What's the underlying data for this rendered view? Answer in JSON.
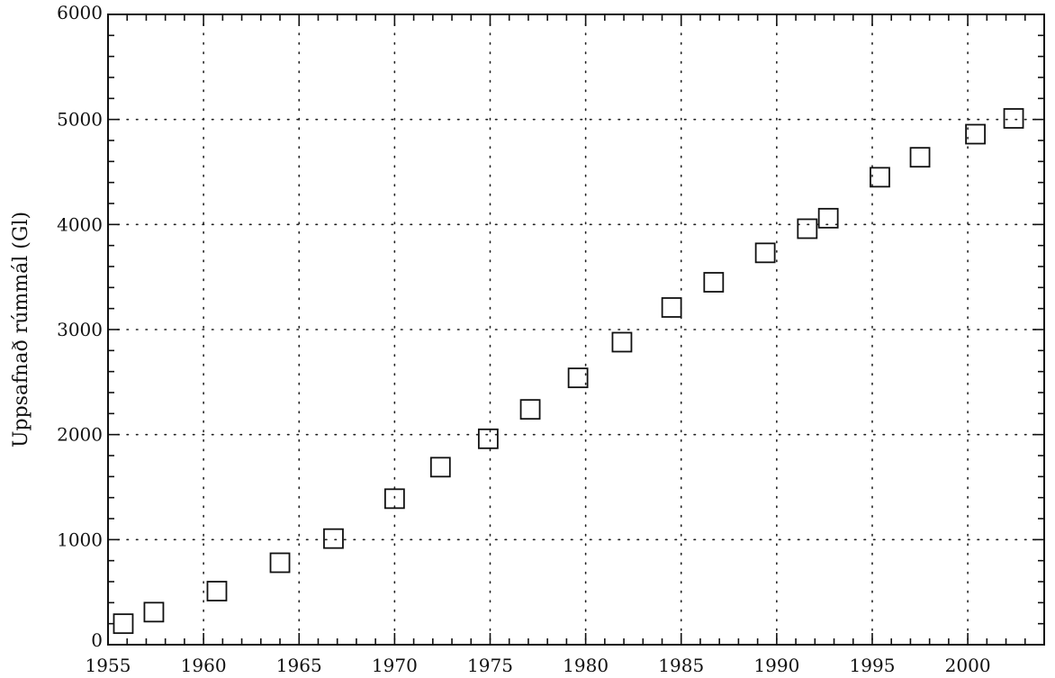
{
  "chart_data": {
    "type": "scatter",
    "title": "",
    "xlabel": "",
    "ylabel": "Uppsafnað rúmmál (Gl)",
    "xlim": [
      1955,
      2004
    ],
    "ylim": [
      0,
      6000
    ],
    "xticks": [
      1955,
      1960,
      1965,
      1970,
      1975,
      1980,
      1985,
      1990,
      1995,
      2000
    ],
    "yticks": [
      0,
      1000,
      2000,
      3000,
      4000,
      5000,
      6000
    ],
    "grid": true,
    "marker": "open-square",
    "x": [
      1955.8,
      1957.4,
      1960.7,
      1964.0,
      1966.8,
      1970.0,
      1972.4,
      1974.9,
      1977.1,
      1979.6,
      1981.9,
      1984.5,
      1986.7,
      1989.4,
      1991.6,
      1992.7,
      1995.4,
      1997.5,
      2000.4,
      2002.4
    ],
    "y": [
      200,
      310,
      510,
      780,
      1010,
      1390,
      1690,
      1960,
      2240,
      2540,
      2880,
      3210,
      3450,
      3730,
      3960,
      4060,
      4450,
      4640,
      4860,
      5010
    ]
  }
}
